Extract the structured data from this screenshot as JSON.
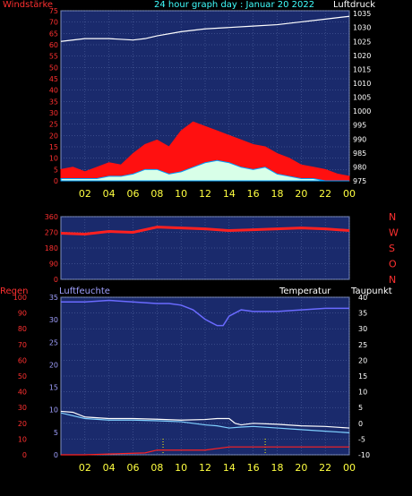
{
  "header": {
    "left_label": "Windstärke",
    "title": "24 hour graph day : Januar 20 2022",
    "right_label": "Luftdruck"
  },
  "colors": {
    "panel_bg": "#1a2a6c",
    "grid": "#5a6ea8",
    "wind": "#ff1010",
    "gust_fill": "#d8ffe8",
    "pressure": "#ffffff",
    "direction": "#ff2020",
    "humidity": "#6a6aff",
    "temperature": "#ffffff",
    "dewpoint": "#7fd0ff",
    "rain": "#ff2020",
    "left_axis_text": "#ff3030",
    "right_axis_text": "#ffffff",
    "x_axis_text": "#ffff40",
    "title_text": "#40ffff",
    "hum_axis_text": "#a0a0ff"
  },
  "chart_data": [
    {
      "type": "line",
      "name": "wind-pressure",
      "x_ticks": [
        "02",
        "04",
        "06",
        "08",
        "10",
        "12",
        "14",
        "16",
        "18",
        "20",
        "22",
        "00"
      ],
      "x_range_hours": [
        0,
        24
      ],
      "left_axis": {
        "label": "Windstärke",
        "ticks": [
          0,
          5,
          10,
          15,
          20,
          25,
          30,
          35,
          40,
          45,
          50,
          55,
          60,
          65,
          70,
          75
        ],
        "ylim": [
          0,
          75
        ]
      },
      "right_axis": {
        "label": "Luftdruck",
        "ticks": [
          975,
          980,
          985,
          990,
          995,
          1000,
          1005,
          1010,
          1015,
          1020,
          1025,
          1030,
          1035
        ],
        "ylim": [
          975,
          1036
        ]
      },
      "series": {
        "pressure": {
          "x": [
            0,
            2,
            4,
            6,
            7,
            8,
            10,
            12,
            14,
            16,
            18,
            20,
            22,
            24
          ],
          "y": [
            1025,
            1026,
            1026,
            1025.5,
            1026,
            1027,
            1028.5,
            1029.5,
            1030,
            1030.5,
            1031,
            1032,
            1033,
            1034
          ]
        },
        "wind": {
          "x": [
            0,
            1,
            2,
            3,
            4,
            5,
            6,
            7,
            8,
            9,
            10,
            11,
            12,
            13,
            14,
            15,
            16,
            17,
            18,
            19,
            20,
            21,
            22,
            23,
            24
          ],
          "y": [
            5,
            6,
            4,
            6,
            8,
            7,
            12,
            16,
            18,
            15,
            22,
            26,
            24,
            22,
            20,
            18,
            16,
            15,
            12,
            10,
            7,
            6,
            5,
            3,
            2
          ]
        },
        "gust": {
          "x": [
            0,
            1,
            2,
            3,
            4,
            5,
            6,
            7,
            8,
            9,
            10,
            11,
            12,
            13,
            14,
            15,
            16,
            17,
            18,
            19,
            20,
            21,
            22,
            23,
            24
          ],
          "y": [
            1,
            1,
            1,
            1,
            2,
            2,
            3,
            5,
            5,
            3,
            4,
            6,
            8,
            9,
            8,
            6,
            5,
            6,
            3,
            2,
            1,
            1,
            0,
            0,
            0
          ]
        }
      }
    },
    {
      "type": "line",
      "name": "wind-direction",
      "x_range_hours": [
        0,
        24
      ],
      "left_axis": {
        "ticks": [
          0,
          90,
          180,
          270,
          360
        ],
        "ylim": [
          0,
          360
        ]
      },
      "right_labels": [
        "N",
        "W",
        "S",
        "O",
        "N"
      ],
      "series": {
        "direction": {
          "x": [
            0,
            2,
            4,
            6,
            8,
            10,
            12,
            14,
            16,
            18,
            20,
            22,
            24
          ],
          "y": [
            265,
            260,
            275,
            270,
            300,
            295,
            290,
            280,
            285,
            290,
            295,
            290,
            280
          ]
        }
      }
    },
    {
      "type": "line",
      "name": "rain-humidity-temperature",
      "x_ticks": [
        "02",
        "04",
        "06",
        "08",
        "10",
        "12",
        "14",
        "16",
        "18",
        "20",
        "22",
        "00"
      ],
      "x_range_hours": [
        0,
        24
      ],
      "labels": {
        "left": "Regen",
        "humidity": "Luftfeuchte",
        "temperature": "Temperatur",
        "dewpoint": "Taupunkt"
      },
      "rain_axis": {
        "ticks": [
          0,
          10,
          20,
          30,
          40,
          50,
          60,
          70,
          80,
          90,
          100
        ],
        "ylim": [
          0,
          100
        ]
      },
      "hum_axis": {
        "ticks": [
          0,
          5,
          10,
          15,
          20,
          25,
          30,
          35
        ],
        "ylim": [
          0,
          35
        ]
      },
      "temp_axis": {
        "ticks": [
          -10,
          -5,
          0,
          5,
          10,
          15,
          20,
          25,
          30,
          35,
          40
        ],
        "ylim": [
          -10,
          40
        ]
      },
      "series": {
        "humidity": {
          "x": [
            0,
            2,
            4,
            6,
            8,
            9,
            10,
            11,
            12,
            12.5,
            13,
            13.5,
            14,
            15,
            16,
            18,
            20,
            22,
            24
          ],
          "y": [
            97,
            97,
            98,
            97,
            96,
            96,
            95,
            92,
            86,
            84,
            82,
            82,
            88,
            92,
            91,
            91,
            92,
            93,
            93
          ]
        },
        "temperature": {
          "x": [
            0,
            1,
            2,
            4,
            6,
            8,
            10,
            12,
            13,
            14,
            14.5,
            15,
            16,
            18,
            20,
            22,
            24
          ],
          "y": [
            3.8,
            3.5,
            2,
            1.5,
            1.5,
            1.3,
            1,
            1.2,
            1.5,
            1.5,
            0,
            -0.5,
            0,
            -0.3,
            -0.8,
            -1,
            -1.5
          ]
        },
        "dewpoint": {
          "x": [
            0,
            2,
            4,
            6,
            8,
            10,
            12,
            13,
            14,
            15,
            16,
            18,
            20,
            22,
            24
          ],
          "y": [
            3.3,
            1.5,
            1,
            1,
            0.8,
            0.5,
            -0.5,
            -0.8,
            -1.5,
            -1.2,
            -1,
            -1.5,
            -2,
            -2.5,
            -3
          ]
        },
        "rain": {
          "x": [
            0,
            2,
            4,
            6,
            7,
            8,
            9,
            11,
            12,
            14,
            15,
            16,
            18,
            20,
            22,
            24
          ],
          "y": [
            0,
            0,
            0.5,
            1,
            1.2,
            3,
            3,
            3,
            3,
            5,
            5,
            5,
            5,
            5,
            5,
            5
          ]
        }
      },
      "markers_hours": [
        8.5,
        17
      ]
    }
  ]
}
